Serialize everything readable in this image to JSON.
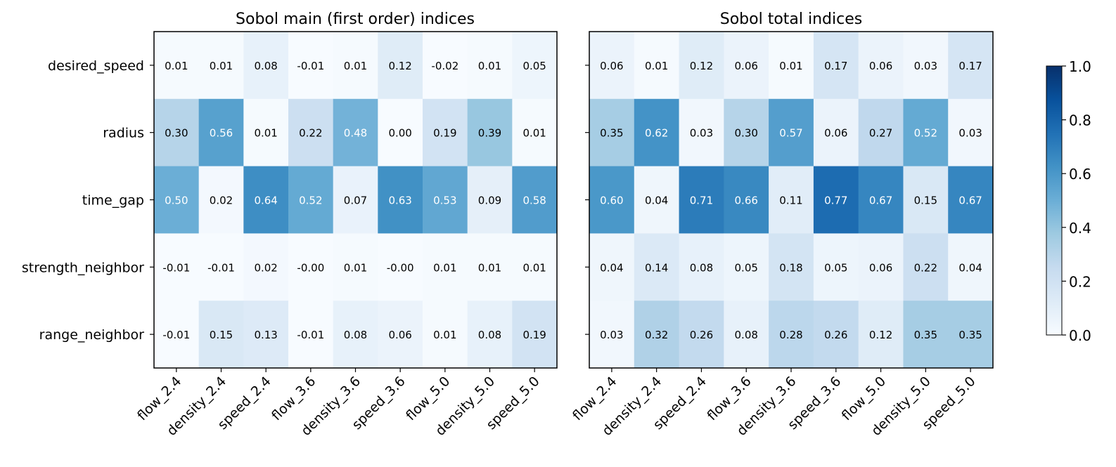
{
  "chart_data": [
    {
      "type": "heatmap",
      "title": "Sobol main (first order) indices",
      "rows": [
        "desired_speed",
        "radius",
        "time_gap",
        "strength_neighbor",
        "range_neighbor"
      ],
      "columns": [
        "flow_2.4",
        "density_2.4",
        "speed_2.4",
        "flow_3.6",
        "density_3.6",
        "speed_3.6",
        "flow_5.0",
        "density_5.0",
        "speed_5.0"
      ],
      "values": [
        [
          0.01,
          0.01,
          0.08,
          -0.01,
          0.01,
          0.12,
          -0.02,
          0.01,
          0.05
        ],
        [
          0.3,
          0.56,
          0.01,
          0.22,
          0.48,
          0.0,
          0.19,
          0.39,
          0.01
        ],
        [
          0.5,
          0.02,
          0.64,
          0.52,
          0.07,
          0.63,
          0.53,
          0.09,
          0.58
        ],
        [
          -0.01,
          -0.01,
          0.02,
          -0.0,
          0.01,
          -0.0,
          0.01,
          0.01,
          0.01
        ],
        [
          -0.01,
          0.15,
          0.13,
          -0.01,
          0.08,
          0.06,
          0.01,
          0.08,
          0.19
        ]
      ],
      "labels": [
        [
          "0.01",
          "0.01",
          "0.08",
          "-0.01",
          "0.01",
          "0.12",
          "-0.02",
          "0.01",
          "0.05"
        ],
        [
          "0.30",
          "0.56",
          "0.01",
          "0.22",
          "0.48",
          "0.00",
          "0.19",
          "0.39",
          "0.01"
        ],
        [
          "0.50",
          "0.02",
          "0.64",
          "0.52",
          "0.07",
          "0.63",
          "0.53",
          "0.09",
          "0.58"
        ],
        [
          "-0.01",
          "-0.01",
          "0.02",
          "-0.00",
          "0.01",
          "-0.00",
          "0.01",
          "0.01",
          "0.01"
        ],
        [
          "-0.01",
          "0.15",
          "0.13",
          "-0.01",
          "0.08",
          "0.06",
          "0.01",
          "0.08",
          "0.19"
        ]
      ],
      "show_row_labels": true
    },
    {
      "type": "heatmap",
      "title": "Sobol total indices",
      "rows": [
        "desired_speed",
        "radius",
        "time_gap",
        "strength_neighbor",
        "range_neighbor"
      ],
      "columns": [
        "flow_2.4",
        "density_2.4",
        "speed_2.4",
        "flow_3.6",
        "density_3.6",
        "speed_3.6",
        "flow_5.0",
        "density_5.0",
        "speed_5.0"
      ],
      "values": [
        [
          0.06,
          0.01,
          0.12,
          0.06,
          0.01,
          0.17,
          0.06,
          0.03,
          0.17
        ],
        [
          0.35,
          0.62,
          0.03,
          0.3,
          0.57,
          0.06,
          0.27,
          0.52,
          0.03
        ],
        [
          0.6,
          0.04,
          0.71,
          0.66,
          0.11,
          0.77,
          0.67,
          0.15,
          0.67
        ],
        [
          0.04,
          0.14,
          0.08,
          0.05,
          0.18,
          0.05,
          0.06,
          0.22,
          0.04
        ],
        [
          0.03,
          0.32,
          0.26,
          0.08,
          0.28,
          0.26,
          0.12,
          0.35,
          0.35
        ]
      ],
      "labels": [
        [
          "0.06",
          "0.01",
          "0.12",
          "0.06",
          "0.01",
          "0.17",
          "0.06",
          "0.03",
          "0.17"
        ],
        [
          "0.35",
          "0.62",
          "0.03",
          "0.30",
          "0.57",
          "0.06",
          "0.27",
          "0.52",
          "0.03"
        ],
        [
          "0.60",
          "0.04",
          "0.71",
          "0.66",
          "0.11",
          "0.77",
          "0.67",
          "0.15",
          "0.67"
        ],
        [
          "0.04",
          "0.14",
          "0.08",
          "0.05",
          "0.18",
          "0.05",
          "0.06",
          "0.22",
          "0.04"
        ],
        [
          "0.03",
          "0.32",
          "0.26",
          "0.08",
          "0.28",
          "0.26",
          "0.12",
          "0.35",
          "0.35"
        ]
      ],
      "show_row_labels": false
    }
  ],
  "colorbar": {
    "range": [
      0.0,
      1.0
    ],
    "ticks": [
      "0.0",
      "0.2",
      "0.4",
      "0.6",
      "0.8",
      "1.0"
    ],
    "colormap": "Blues"
  }
}
